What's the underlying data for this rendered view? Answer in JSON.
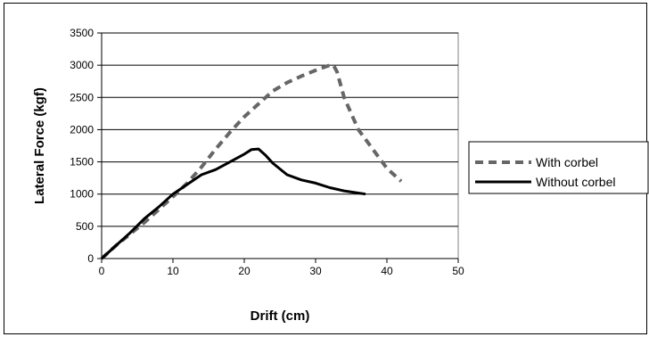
{
  "chart_data": {
    "type": "line",
    "title": "",
    "xlabel": "Drift (cm)",
    "ylabel": "Lateral Force (kgf)",
    "xlim": [
      0,
      50
    ],
    "ylim": [
      0,
      3500
    ],
    "x_ticks": [
      0,
      10,
      20,
      30,
      40,
      50
    ],
    "y_ticks": [
      0,
      500,
      1000,
      1500,
      2000,
      2500,
      3000,
      3500
    ],
    "grid": "horizontal",
    "legend_position": "right",
    "series": [
      {
        "name": "With corbel",
        "color": "#666666",
        "style": "dashed",
        "x": [
          0,
          2,
          4,
          6,
          8,
          10,
          12,
          14,
          16,
          18,
          20,
          22,
          24,
          26,
          28,
          30,
          32,
          32.5,
          33,
          34,
          36,
          38,
          40,
          42
        ],
        "y": [
          0,
          200,
          380,
          560,
          760,
          960,
          1170,
          1420,
          1700,
          1960,
          2200,
          2400,
          2600,
          2730,
          2830,
          2920,
          3000,
          3000,
          2900,
          2500,
          2000,
          1700,
          1400,
          1200
        ]
      },
      {
        "name": "Without corbel",
        "color": "#000000",
        "style": "solid",
        "x": [
          0,
          2,
          4,
          6,
          8,
          10,
          12,
          14,
          16,
          18,
          20,
          21,
          22,
          23,
          24,
          26,
          28,
          30,
          32,
          34,
          37
        ],
        "y": [
          0,
          200,
          400,
          620,
          800,
          1000,
          1150,
          1300,
          1380,
          1500,
          1620,
          1690,
          1700,
          1600,
          1480,
          1300,
          1220,
          1170,
          1100,
          1050,
          1000
        ]
      }
    ]
  }
}
